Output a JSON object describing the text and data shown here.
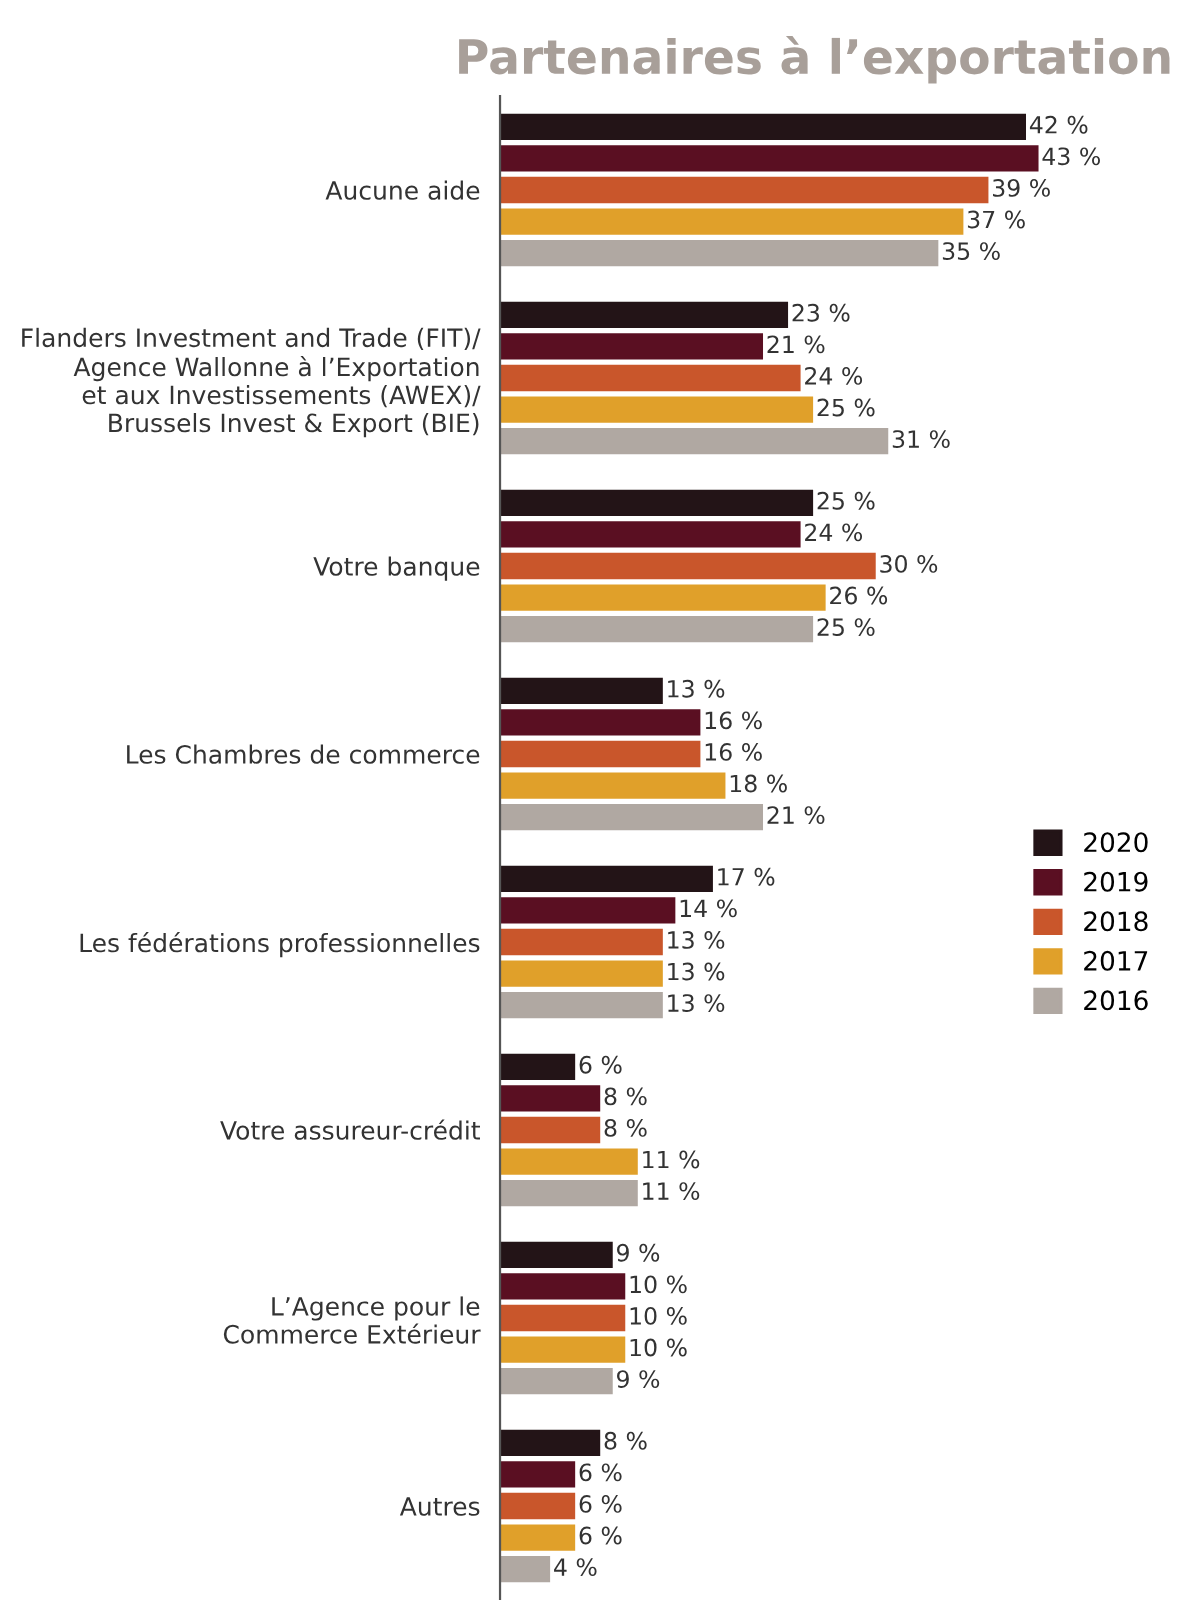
{
  "chart_data": {
    "type": "bar",
    "orientation": "horizontal",
    "title": "Partenaires à l’exportation",
    "categories": [
      "Aucune aide",
      "Flanders Investment and Trade (FIT)/\nAgence Wallonne à l’Exportation\net aux Investissements (AWEX)/\nBrussels Invest & Export (BIE)",
      "Votre banque",
      "Les Chambres de commerce",
      "Les fédérations professionnelles",
      "Votre assureur-crédit",
      "L’Agence pour le\nCommerce Extérieur",
      "Autres"
    ],
    "series": [
      {
        "name": "2020",
        "color": "#231417",
        "values": [
          42,
          23,
          25,
          13,
          17,
          6,
          9,
          8
        ],
        "value_labels": [
          "42 %",
          "23 %",
          "25 %",
          "13 %",
          "17 %",
          "6 %",
          "9 %",
          "8 %"
        ]
      },
      {
        "name": "2019",
        "color": "#5a0f22",
        "values": [
          43,
          21,
          24,
          16,
          14,
          8,
          10,
          6
        ],
        "value_labels": [
          "43 %",
          "21 %",
          "24 %",
          "16 %",
          "14 %",
          "8 %",
          "10 %",
          "6 %"
        ]
      },
      {
        "name": "2018",
        "color": "#c9562b",
        "values": [
          39,
          24,
          30,
          16,
          13,
          8,
          10,
          6
        ],
        "value_labels": [
          "39 %",
          "24 %",
          "30 %",
          "16 %",
          "13 %",
          "8 %",
          "10 %",
          "6 %"
        ]
      },
      {
        "name": "2017",
        "color": "#e0a02a",
        "values": [
          37,
          25,
          26,
          18,
          13,
          11,
          10,
          6
        ],
        "value_labels": [
          "37 %",
          "25 %",
          "26 %",
          "18 %",
          "13 %",
          "11 %",
          "10 %",
          "6 %"
        ]
      },
      {
        "name": "2016",
        "color": "#b0a8a2",
        "values": [
          35,
          31,
          25,
          21,
          13,
          11,
          9,
          4
        ],
        "value_labels": [
          "35 %",
          "31 %",
          "25 %",
          "21 %",
          "13 %",
          "11 %",
          "9 %",
          "4 %"
        ]
      }
    ],
    "legend": "right",
    "tick_labels": "y",
    "grid": false
  }
}
